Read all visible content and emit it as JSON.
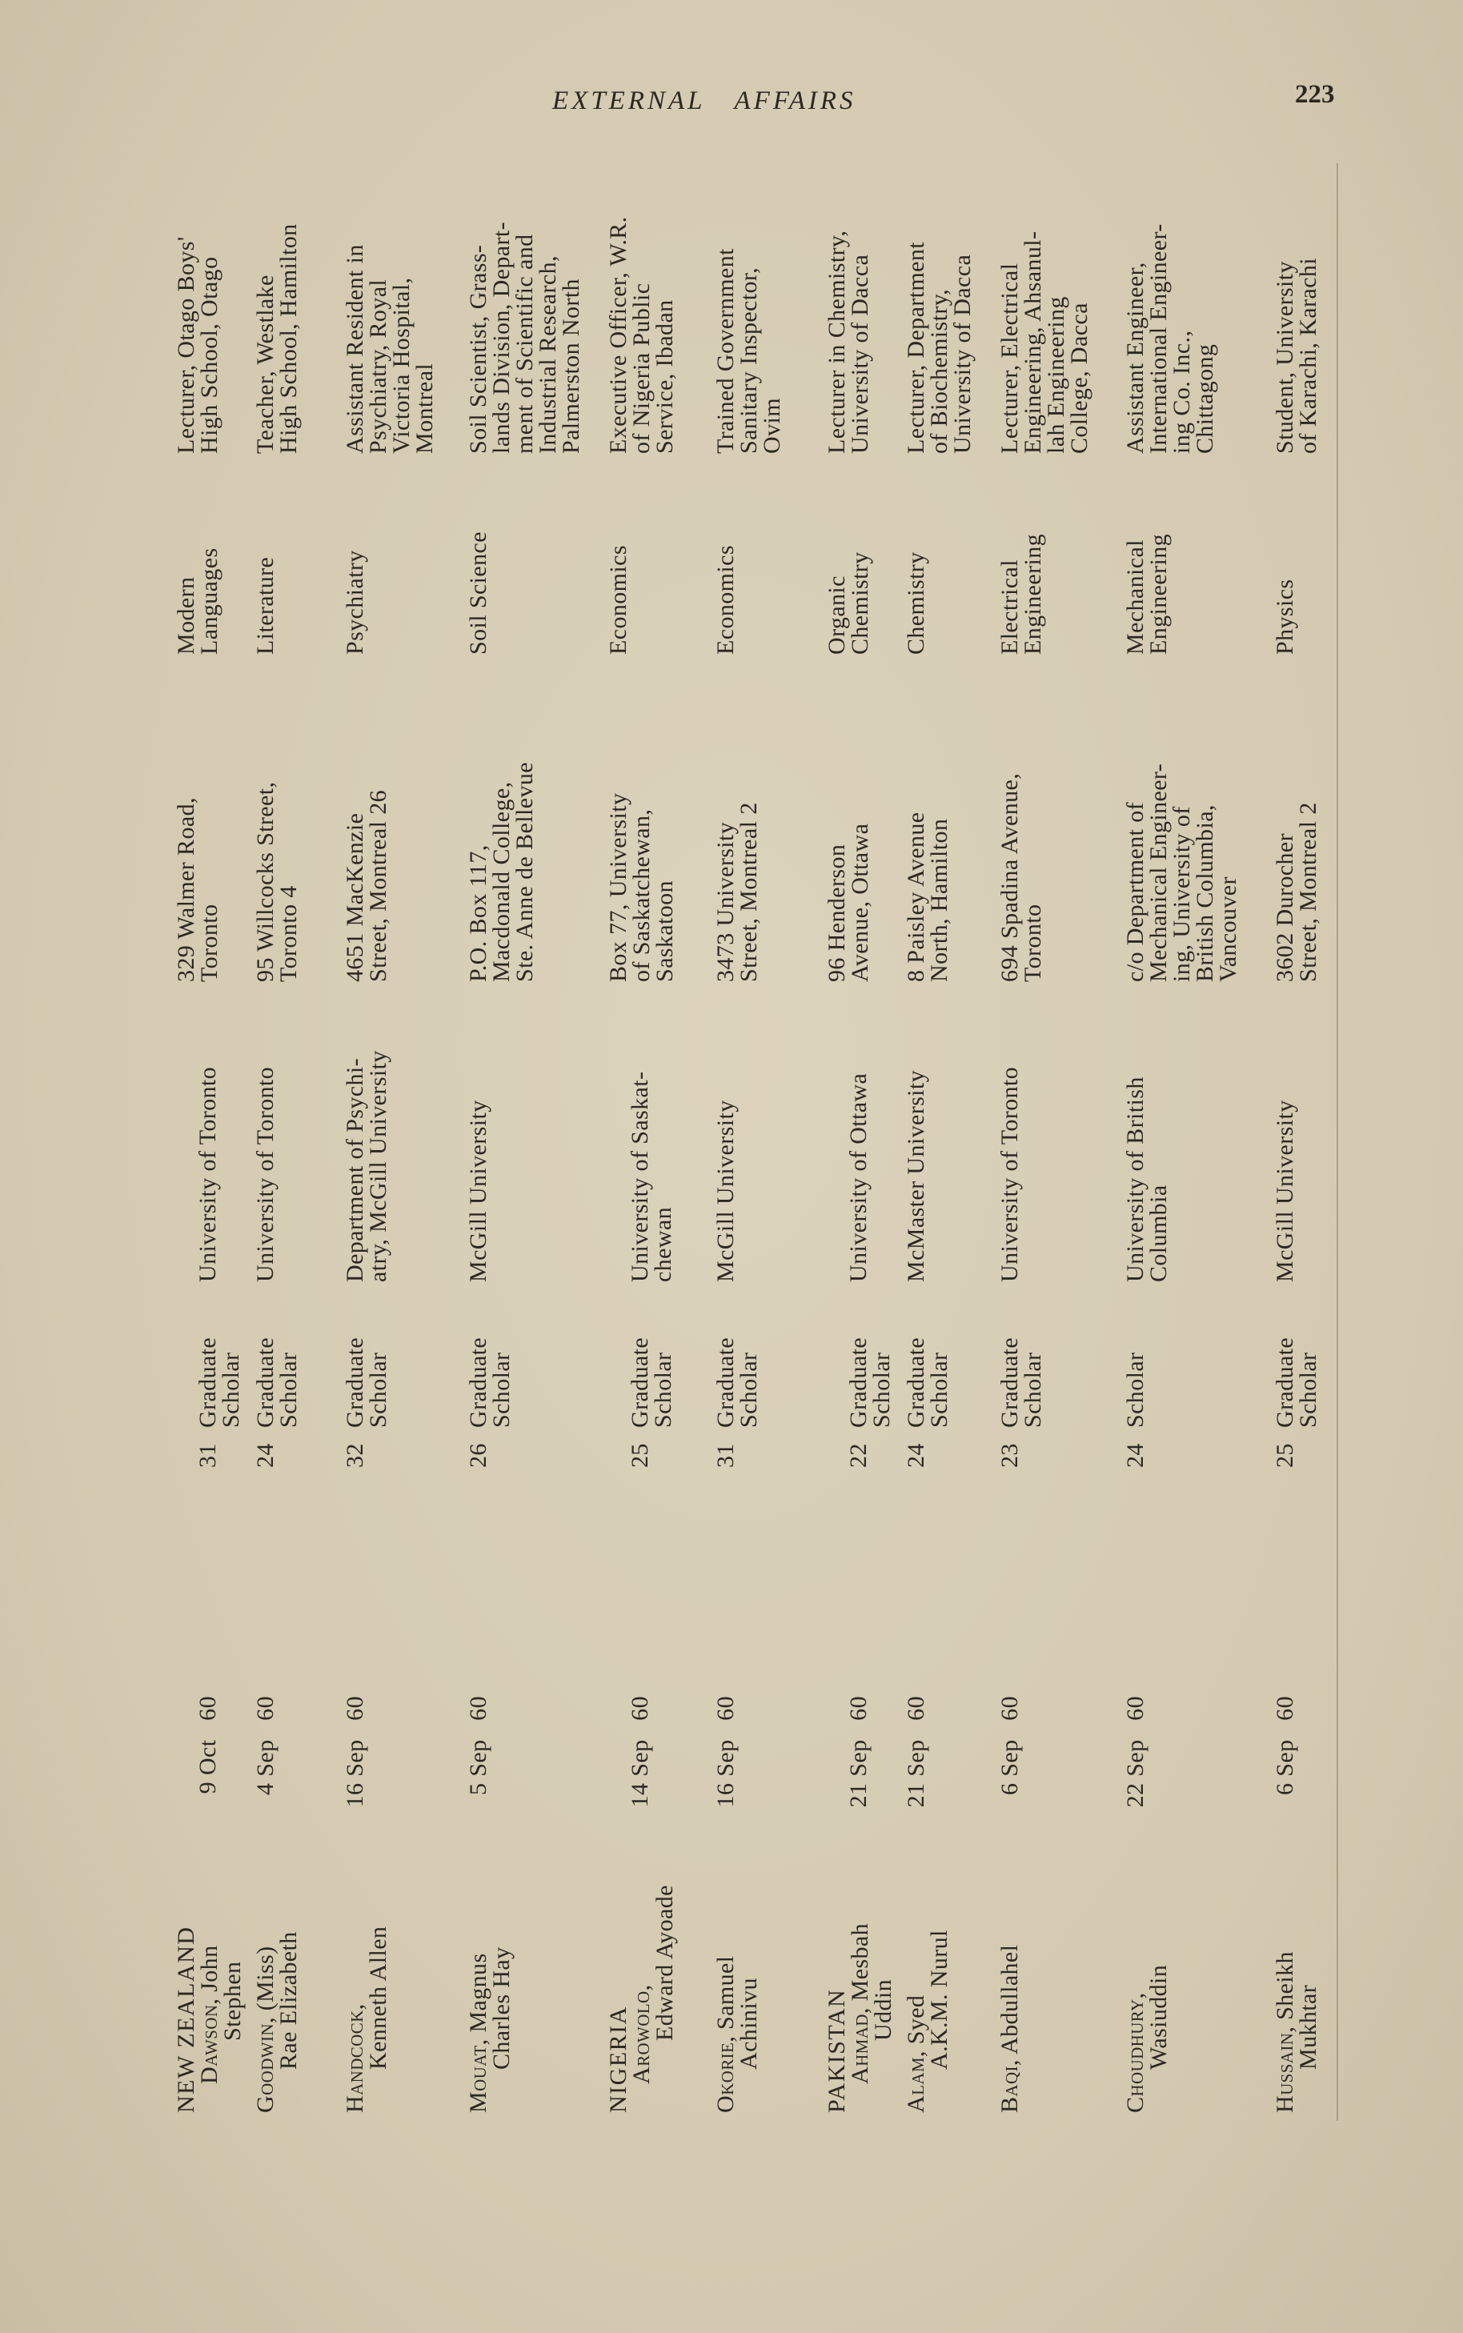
{
  "header": {
    "running_head_1": "EXTERNAL",
    "running_head_2": "AFFAIRS",
    "page_number": "223"
  },
  "rows": [
    {
      "country": "NEW ZEALAND",
      "surname": "Dawson",
      "given": ", John",
      "cont": "Stephen",
      "date": "9 Oct",
      "year": "60",
      "age": "31",
      "award": [
        "Graduate",
        "Scholar"
      ],
      "university": [
        "University of Toronto"
      ],
      "address": [
        "329 Walmer Road,",
        "Toronto"
      ],
      "field": [
        "Modern",
        "Languages"
      ],
      "position": [
        "Lecturer, Otago Boys'",
        "High School, Otago"
      ]
    },
    {
      "surname": "Goodwin",
      "given": ", (Miss)",
      "cont": "Rae Elizabeth",
      "date": "4 Sep",
      "year": "60",
      "age": "24",
      "award": [
        "Graduate",
        "Scholar"
      ],
      "university": [
        "University of Toronto"
      ],
      "address": [
        "95 Willcocks Street,",
        "Toronto 4"
      ],
      "field": [
        "Literature"
      ],
      "position": [
        "Teacher, Westlake",
        "High School, Hamilton"
      ]
    },
    {
      "surname": "Handcock",
      "given": ",",
      "cont": "Kenneth Allen",
      "date": "16 Sep",
      "year": "60",
      "age": "32",
      "award": [
        "Graduate",
        "Scholar"
      ],
      "university": [
        "Department of Psychi-",
        "atry, McGill University"
      ],
      "address": [
        "4651 MacKenzie",
        "Street, Montreal 26"
      ],
      "field": [
        "Psychiatry"
      ],
      "position": [
        "Assistant Resident in",
        "Psychiatry, Royal",
        "Victoria Hospital,",
        "Montreal"
      ]
    },
    {
      "surname": "Mouat",
      "given": ", Magnus",
      "cont": "Charles Hay",
      "date": "5 Sep",
      "year": "60",
      "age": "26",
      "award": [
        "Graduate",
        "Scholar"
      ],
      "university": [
        "McGill University"
      ],
      "address": [
        "P.O. Box 117,",
        "Macdonald College,",
        "Ste. Anne de Bellevue"
      ],
      "field": [
        "Soil Science"
      ],
      "position": [
        "Soil Scientist, Grass-",
        "lands Division, Depart-",
        "ment of Scientific and",
        "Industrial Research,",
        "Palmerston North"
      ]
    },
    {
      "country": "NIGERIA",
      "surname": "Arowolo",
      "given": ",",
      "cont": "Edward Ayoade",
      "date": "14 Sep",
      "year": "60",
      "age": "25",
      "award": [
        "Graduate",
        "Scholar"
      ],
      "university": [
        "University of Saskat-",
        "chewan"
      ],
      "address": [
        "Box 77, University",
        "of Saskatchewan,",
        "Saskatoon"
      ],
      "field": [
        "Economics"
      ],
      "position": [
        "Executive Officer, W.R.",
        "of Nigeria Public",
        "Service, Ibadan"
      ]
    },
    {
      "surname": "Okorie",
      "given": ", Samuel",
      "cont": "Achinivu",
      "date": "16 Sep",
      "year": "60",
      "age": "31",
      "award": [
        "Graduate",
        "Scholar"
      ],
      "university": [
        "McGill University"
      ],
      "address": [
        "3473 University",
        "Street, Montreal 2"
      ],
      "field": [
        "Economics"
      ],
      "position": [
        "Trained Government",
        "Sanitary Inspector,",
        "Ovim"
      ]
    },
    {
      "country": "PAKISTAN",
      "surname": "Ahmad",
      "given": ", Mesbah",
      "cont": "Uddin",
      "date": "21 Sep",
      "year": "60",
      "age": "22",
      "award": [
        "Graduate",
        "Scholar"
      ],
      "university": [
        "University of Ottawa"
      ],
      "address": [
        "96 Henderson",
        "Avenue, Ottawa"
      ],
      "field": [
        "Organic",
        "Chemistry"
      ],
      "position": [
        "Lecturer in Chemistry,",
        "University of Dacca"
      ]
    },
    {
      "surname": "Alam",
      "given": ", Syed",
      "cont": "A.K.M. Nurul",
      "date": "21 Sep",
      "year": "60",
      "age": "24",
      "award": [
        "Graduate",
        "Scholar"
      ],
      "university": [
        "McMaster University"
      ],
      "address": [
        "8 Paisley Avenue",
        "North, Hamilton"
      ],
      "field": [
        "Chemistry"
      ],
      "position": [
        "Lecturer, Department",
        "of Biochemistry,",
        "University of Dacca"
      ]
    },
    {
      "surname": "Baqi",
      "given": ", Abdullahel",
      "date": "6 Sep",
      "year": "60",
      "age": "23",
      "award": [
        "Graduate",
        "Scholar"
      ],
      "university": [
        "University of Toronto"
      ],
      "address": [
        "694 Spadina Avenue,",
        "Toronto"
      ],
      "field": [
        "Electrical",
        "Engineering"
      ],
      "position": [
        "Lecturer, Electrical",
        "Engineering, Ahsanul-",
        "lah Engineering",
        "College, Dacca"
      ]
    },
    {
      "surname": "Choudhury",
      "given": ",",
      "cont": "Wasiuddin",
      "date": "22 Sep",
      "year": "60",
      "age": "24",
      "award": [
        "Scholar"
      ],
      "university": [
        "University of British",
        "Columbia"
      ],
      "address": [
        "c/o Department of",
        "Mechanical Engineer-",
        "ing, University of",
        "British Columbia,",
        "Vancouver"
      ],
      "field": [
        "Mechanical",
        "Engineering"
      ],
      "position": [
        "Assistant Engineer,",
        "International Engineer-",
        "ing Co. Inc.,",
        "Chittagong"
      ]
    },
    {
      "surname": "Hussain",
      "given": ", Sheikh",
      "cont": "Mukhtar",
      "date": "6 Sep",
      "year": "60",
      "age": "25",
      "award": [
        "Graduate",
        "Scholar"
      ],
      "university": [
        "McGill University"
      ],
      "address": [
        "3602 Durocher",
        "Street, Montreal 2"
      ],
      "field": [
        "Physics"
      ],
      "position": [
        "Student, University",
        "of Karachi, Karachi"
      ]
    }
  ]
}
